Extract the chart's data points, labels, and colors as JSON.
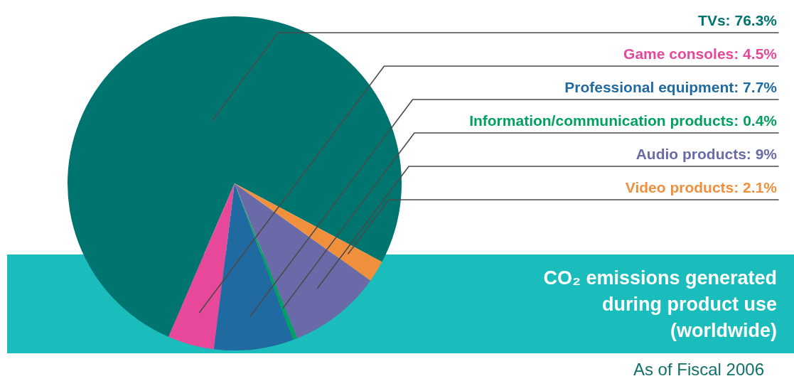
{
  "chart_data": {
    "type": "pie",
    "title": "CO₂ emissions generated during product use (worldwide)",
    "categories": [
      "TVs",
      "Game consoles",
      "Professional equipment",
      "Information/communication products",
      "Audio products",
      "Video products"
    ],
    "values": [
      76.3,
      4.5,
      7.7,
      0.4,
      9,
      2.1
    ],
    "value_labels": [
      "76.3%",
      "4.5%",
      "7.7%",
      "0.4%",
      "9%",
      "2.1%"
    ],
    "colors": [
      "#00756f",
      "#e8489a",
      "#1f6aa0",
      "#00a060",
      "#6a6aa8",
      "#f0903c"
    ],
    "annotations": [
      "As of Fiscal 2006"
    ]
  }
}
